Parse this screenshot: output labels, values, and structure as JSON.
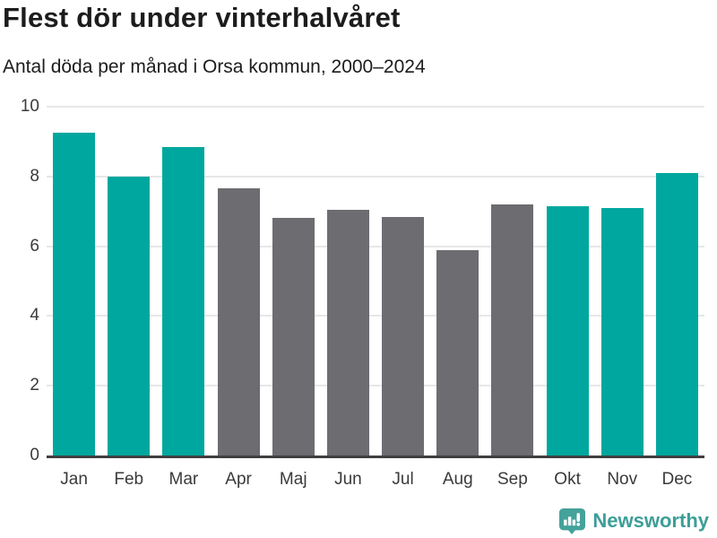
{
  "header": {
    "title": "Flest dör under vinterhalvåret",
    "subtitle": "Antal döda per månad i Orsa kommun, 2000–2024"
  },
  "chart_data": {
    "type": "bar",
    "title": "Flest dör under vinterhalvåret",
    "subtitle": "Antal döda per månad i Orsa kommun, 2000–2024",
    "categories": [
      "Jan",
      "Feb",
      "Mar",
      "Apr",
      "Maj",
      "Jun",
      "Jul",
      "Aug",
      "Sep",
      "Okt",
      "Nov",
      "Dec"
    ],
    "values": [
      9.25,
      8.0,
      8.85,
      7.65,
      6.8,
      7.05,
      6.85,
      5.9,
      7.2,
      7.15,
      7.1,
      8.1
    ],
    "bar_colors": [
      "teal",
      "teal",
      "teal",
      "gray",
      "gray",
      "gray",
      "gray",
      "gray",
      "gray",
      "teal",
      "teal",
      "teal"
    ],
    "colors": {
      "teal": "#00a79e",
      "gray": "#6c6c71"
    },
    "xlabel": "",
    "ylabel": "",
    "ylim": [
      0,
      10
    ],
    "yticks": [
      0,
      2,
      4,
      6,
      8,
      10
    ],
    "grid": "horizontal",
    "gridline_color": "#e7e7e7",
    "axis_line_color": "#3f3f3f",
    "legend_position": "none"
  },
  "footer": {
    "brand": "Newsworthy",
    "logo_icon": "bar-chart-speech-bubble-icon",
    "logo_color": "#44a29b"
  }
}
